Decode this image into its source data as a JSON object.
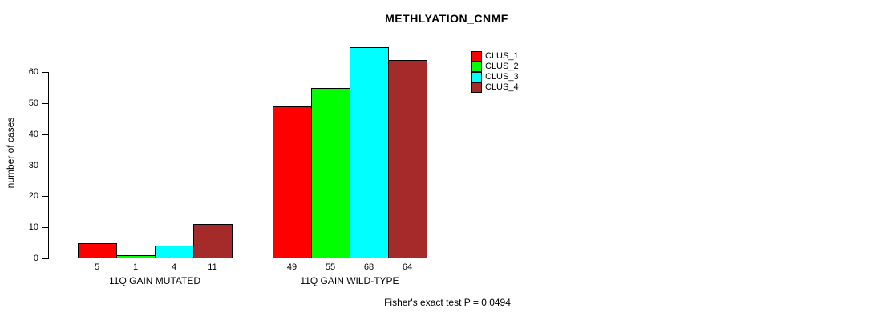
{
  "title": "METHLYATION_CNMF",
  "ylabel": "number of cases",
  "footer": "Fisher's exact test P = 0.0494",
  "legend": {
    "position": "top-right",
    "items": [
      {
        "label": "CLUS_1",
        "color": "#ff0000"
      },
      {
        "label": "CLUS_2",
        "color": "#00ff00"
      },
      {
        "label": "CLUS_3",
        "color": "#00ffff"
      },
      {
        "label": "CLUS_4",
        "color": "#a52a2a"
      }
    ]
  },
  "chart_data": {
    "type": "bar",
    "title": "METHLYATION_CNMF",
    "xlabel": "",
    "ylabel": "number of cases",
    "grid": false,
    "legend_position": "top-right",
    "yticks": [
      0,
      10,
      20,
      30,
      40,
      50,
      60
    ],
    "ylim": [
      0,
      68
    ],
    "series": [
      {
        "name": "CLUS_1",
        "color": "#ff0000",
        "values": [
          5,
          49
        ]
      },
      {
        "name": "CLUS_2",
        "color": "#00ff00",
        "values": [
          1,
          55
        ]
      },
      {
        "name": "CLUS_3",
        "color": "#00ffff",
        "values": [
          4,
          68
        ]
      },
      {
        "name": "CLUS_4",
        "color": "#a52a2a",
        "values": [
          11,
          64
        ]
      }
    ],
    "groups": [
      {
        "label": "11Q GAIN MUTATED",
        "values": [
          5,
          1,
          4,
          11
        ],
        "bar_value_labels": [
          "5",
          "1",
          "4",
          "11"
        ]
      },
      {
        "label": "11Q GAIN WILD-TYPE",
        "values": [
          49,
          55,
          68,
          64
        ],
        "bar_value_labels": [
          "49",
          "55",
          "68",
          "64"
        ]
      }
    ]
  }
}
